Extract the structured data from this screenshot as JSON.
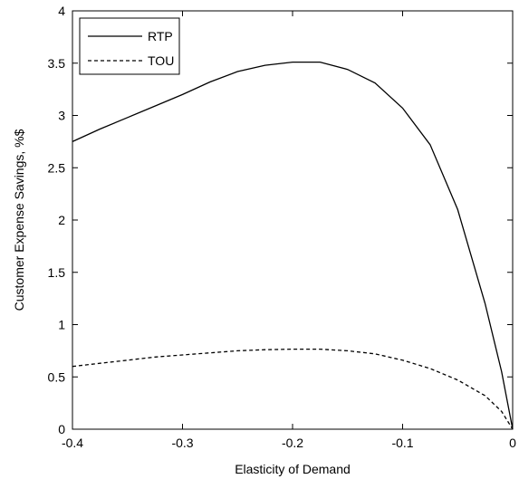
{
  "chart_data": {
    "type": "line",
    "title": "",
    "xlabel": "Elasticity of Demand",
    "ylabel": "Customer Expense Savings, %$",
    "xlim": [
      -0.4,
      0
    ],
    "ylim": [
      0,
      4
    ],
    "xticks": [
      -0.4,
      -0.3,
      -0.2,
      -0.1,
      0
    ],
    "xtick_labels": [
      "-0.4",
      "-0.3",
      "-0.2",
      "-0.1",
      "0"
    ],
    "yticks": [
      0,
      0.5,
      1,
      1.5,
      2,
      2.5,
      3,
      3.5,
      4
    ],
    "ytick_labels": [
      "0",
      "0.5",
      "1",
      "1.5",
      "2",
      "2.5",
      "3",
      "3.5",
      "4"
    ],
    "grid": false,
    "legend_position": "top-left",
    "series": [
      {
        "name": "RTP",
        "line_style": "solid",
        "color": "#000000",
        "x": [
          -0.4,
          -0.375,
          -0.35,
          -0.325,
          -0.3,
          -0.275,
          -0.25,
          -0.225,
          -0.2,
          -0.175,
          -0.15,
          -0.125,
          -0.1,
          -0.075,
          -0.05,
          -0.025,
          -0.01,
          0
        ],
        "y": [
          2.75,
          2.87,
          2.98,
          3.09,
          3.2,
          3.32,
          3.42,
          3.48,
          3.51,
          3.51,
          3.44,
          3.31,
          3.07,
          2.72,
          2.1,
          1.2,
          0.55,
          0
        ]
      },
      {
        "name": "TOU",
        "line_style": "dashed",
        "color": "#000000",
        "x": [
          -0.4,
          -0.375,
          -0.35,
          -0.325,
          -0.3,
          -0.275,
          -0.25,
          -0.225,
          -0.2,
          -0.175,
          -0.15,
          -0.125,
          -0.1,
          -0.075,
          -0.05,
          -0.025,
          -0.01,
          0
        ],
        "y": [
          0.6,
          0.63,
          0.66,
          0.69,
          0.71,
          0.73,
          0.75,
          0.76,
          0.765,
          0.765,
          0.75,
          0.72,
          0.66,
          0.58,
          0.47,
          0.32,
          0.17,
          0
        ]
      }
    ]
  }
}
